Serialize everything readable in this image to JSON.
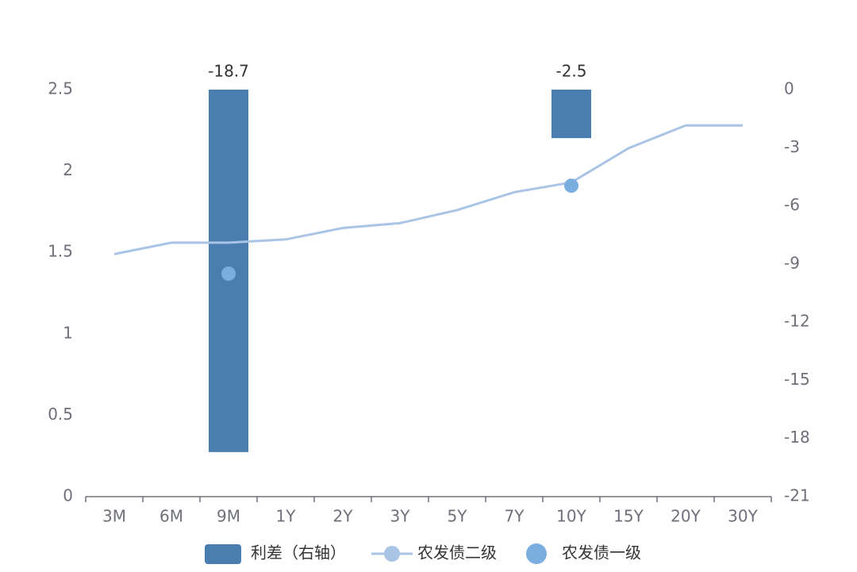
{
  "chart_data": {
    "type": "combo",
    "categories": [
      "3M",
      "6M",
      "9M",
      "1Y",
      "2Y",
      "3Y",
      "5Y",
      "7Y",
      "10Y",
      "15Y",
      "20Y",
      "30Y"
    ],
    "ylim": [
      0,
      2.5
    ],
    "yticks": [
      0,
      0.5,
      1,
      1.5,
      2,
      2.5
    ],
    "y2lim": [
      -21,
      0
    ],
    "y2ticks": [
      0,
      -3,
      -6,
      -9,
      -12,
      -15,
      -18,
      -21
    ],
    "series": [
      {
        "name": "利差（右轴）",
        "type": "bar",
        "axis": "y2",
        "color": "#4a7eb0",
        "values": [
          null,
          null,
          -18.7,
          null,
          null,
          null,
          null,
          null,
          -2.5,
          null,
          null,
          null
        ]
      },
      {
        "name": "农发债二级",
        "type": "line",
        "color": "#a9c4e4",
        "values": [
          1.49,
          1.56,
          1.56,
          1.58,
          1.65,
          1.68,
          1.76,
          1.87,
          1.93,
          2.14,
          2.28,
          2.28
        ]
      },
      {
        "name": "农发债一级",
        "type": "scatter",
        "color": "#7aaee0",
        "values": [
          null,
          null,
          1.37,
          null,
          null,
          null,
          null,
          null,
          1.91,
          null,
          null,
          null
        ]
      }
    ]
  }
}
